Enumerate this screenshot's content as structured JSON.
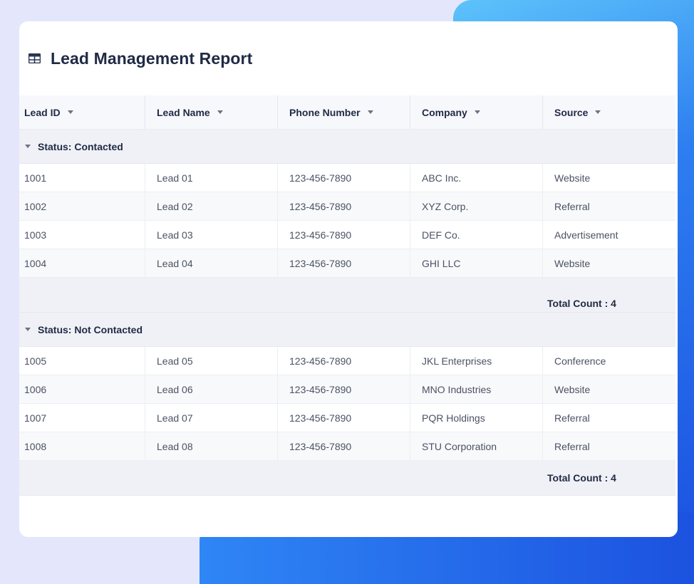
{
  "report": {
    "title": "Lead Management Report",
    "icon": "table-icon"
  },
  "columns": [
    {
      "label": "Lead ID"
    },
    {
      "label": "Lead Name"
    },
    {
      "label": "Phone Number"
    },
    {
      "label": "Company"
    },
    {
      "label": "Source"
    }
  ],
  "groups": [
    {
      "label": "Status: Contacted",
      "rows": [
        {
          "id": "1001",
          "name": "Lead 01",
          "phone": "123-456-7890",
          "company": "ABC Inc.",
          "source": "Website"
        },
        {
          "id": "1002",
          "name": "Lead 02",
          "phone": "123-456-7890",
          "company": "XYZ Corp.",
          "source": "Referral"
        },
        {
          "id": "1003",
          "name": "Lead 03",
          "phone": "123-456-7890",
          "company": "DEF Co.",
          "source": "Advertisement"
        },
        {
          "id": "1004",
          "name": "Lead 04",
          "phone": "123-456-7890",
          "company": "GHI LLC",
          "source": "Website"
        }
      ],
      "total": "Total Count : 4"
    },
    {
      "label": "Status: Not Contacted",
      "rows": [
        {
          "id": "1005",
          "name": "Lead 05",
          "phone": "123-456-7890",
          "company": "JKL Enterprises",
          "source": "Conference"
        },
        {
          "id": "1006",
          "name": "Lead 06",
          "phone": "123-456-7890",
          "company": "MNO Industries",
          "source": "Website"
        },
        {
          "id": "1007",
          "name": "Lead 07",
          "phone": "123-456-7890",
          "company": "PQR Holdings",
          "source": "Referral"
        },
        {
          "id": "1008",
          "name": "Lead 08",
          "phone": "123-456-7890",
          "company": "STU Corporation",
          "source": "Referral"
        }
      ],
      "total": "Total Count : 4"
    }
  ]
}
